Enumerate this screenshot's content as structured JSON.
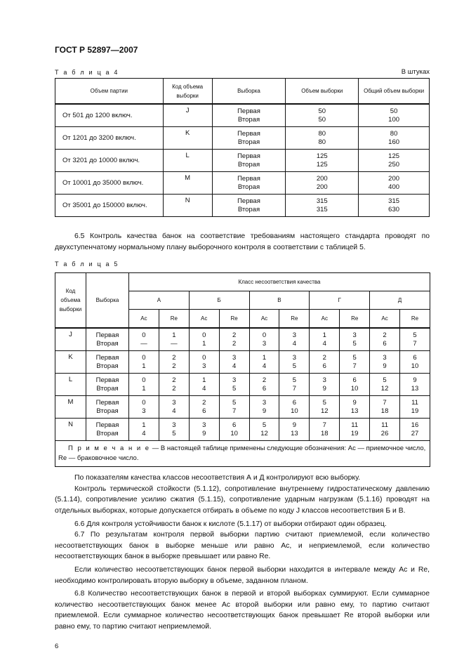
{
  "header": "ГОСТ Р 52897—2007",
  "table4": {
    "label": "Т а б л и ц а  4",
    "unit": "В штуках",
    "columns": [
      "Объем партии",
      "Код объема выборки",
      "Выборка",
      "Объем выборки",
      "Общий объем выборки"
    ],
    "rows": [
      {
        "lot": "От 501 до 1200 включ.",
        "code": "J",
        "sample": [
          "Первая",
          "Вторая"
        ],
        "size": [
          "50",
          "50"
        ],
        "total": [
          "50",
          "100"
        ]
      },
      {
        "lot": "От 1201 до 3200 включ.",
        "code": "K",
        "sample": [
          "Первая",
          "Вторая"
        ],
        "size": [
          "80",
          "80"
        ],
        "total": [
          "80",
          "160"
        ]
      },
      {
        "lot": "От 3201 до 10000 включ.",
        "code": "L",
        "sample": [
          "Первая",
          "Вторая"
        ],
        "size": [
          "125",
          "125"
        ],
        "total": [
          "125",
          "250"
        ]
      },
      {
        "lot": "От 10001 до 35000 включ.",
        "code": "M",
        "sample": [
          "Первая",
          "Вторая"
        ],
        "size": [
          "200",
          "200"
        ],
        "total": [
          "200",
          "400"
        ]
      },
      {
        "lot": "От 35001 до 150000 включ.",
        "code": "N",
        "sample": [
          "Первая",
          "Вторая"
        ],
        "size": [
          "315",
          "315"
        ],
        "total": [
          "315",
          "630"
        ]
      }
    ]
  },
  "para_6_5": "6.5 Контроль качества банок на соответствие требованиям настоящего стандарта проводят по двухступенчатому нормальному плану выборочного контроля в соответствии с таблицей 5.",
  "table5": {
    "label": "Т а б л и ц а  5",
    "col_code": "Код объема выборки",
    "col_sample": "Выборка",
    "group_header": "Класс несоответствия качества",
    "classes": [
      "А",
      "Б",
      "В",
      "Г",
      "Д"
    ],
    "ac": "Ac",
    "re": "Re",
    "rows": [
      {
        "code": "J",
        "sample": [
          "Первая",
          "Вторая"
        ],
        "first": [
          "0",
          "1",
          "0",
          "2",
          "0",
          "3",
          "1",
          "3",
          "2",
          "5"
        ],
        "second": [
          "—",
          "—",
          "1",
          "2",
          "3",
          "4",
          "4",
          "5",
          "6",
          "7"
        ]
      },
      {
        "code": "K",
        "sample": [
          "Первая",
          "Вторая"
        ],
        "first": [
          "0",
          "2",
          "0",
          "3",
          "1",
          "3",
          "2",
          "5",
          "3",
          "6"
        ],
        "second": [
          "1",
          "2",
          "3",
          "4",
          "4",
          "5",
          "6",
          "7",
          "9",
          "10"
        ]
      },
      {
        "code": "L",
        "sample": [
          "Первая",
          "Вторая"
        ],
        "first": [
          "0",
          "2",
          "1",
          "3",
          "2",
          "5",
          "3",
          "6",
          "5",
          "9"
        ],
        "second": [
          "1",
          "2",
          "4",
          "5",
          "6",
          "7",
          "9",
          "10",
          "12",
          "13"
        ]
      },
      {
        "code": "M",
        "sample": [
          "Первая",
          "Вторая"
        ],
        "first": [
          "0",
          "3",
          "2",
          "5",
          "3",
          "6",
          "5",
          "9",
          "7",
          "11"
        ],
        "second": [
          "3",
          "4",
          "6",
          "7",
          "9",
          "10",
          "12",
          "13",
          "18",
          "19"
        ]
      },
      {
        "code": "N",
        "sample": [
          "Первая",
          "Вторая"
        ],
        "first": [
          "1",
          "3",
          "3",
          "6",
          "5",
          "9",
          "7",
          "11",
          "11",
          "16"
        ],
        "second": [
          "4",
          "5",
          "9",
          "10",
          "12",
          "13",
          "18",
          "19",
          "26",
          "27"
        ]
      }
    ],
    "note_label": "П р и м е ч а н и е",
    "note_text": " — В настоящей таблице применены следующие обозначения: Ac — приемочное число, Re — браковочное число."
  },
  "paragraphs": [
    "По показателям качества классов несоответствия А и Д контролируют всю выборку.",
    "Контроль термической стойкости (5.1.12), сопротивление внутреннему гидростатическому давлению (5.1.14), сопротивление усилию сжатия (5.1.15), сопротивление ударным нагрузкам (5.1.16) проводят на отдельных выборках, которые допускается отбирать в объеме по коду J классов несоответствия Б и В.",
    "6.6 Для контроля устойчивости банок к кислоте (5.1.17) от выборки отбирают один образец.",
    "6.7 По результатам контроля первой выборки партию считают приемлемой, если количество несоответствующих банок в выборке меньше или равно Ac, и неприемлемой, если количество несоответствующих банок в выборке превышает или равно Re.",
    "Если количество несоответствующих банок первой выборки находится в интервале между Ac и Re, необходимо контролировать вторую выборку в объеме, заданном планом.",
    "6.8 Количество несоответствующих банок в первой и второй выборках суммируют. Если суммарное количество несоответствующих банок менее Ac второй выборки или равно ему, то партию считают приемлемой. Если суммарное количество несоответствующих банок превышает Re второй выборки или равно ему, то партию считают неприемлемой."
  ],
  "page_number": "6"
}
